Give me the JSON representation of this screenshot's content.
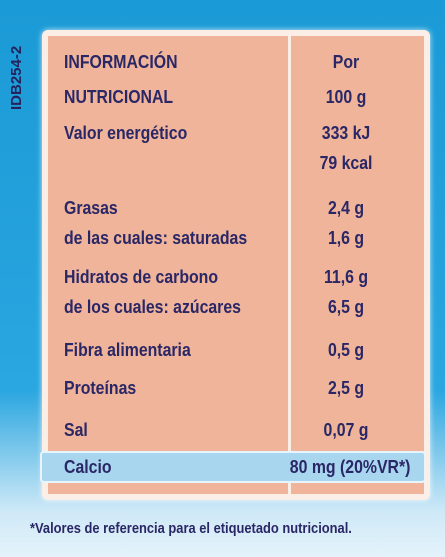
{
  "side_code": "IDB254-2",
  "header": {
    "label": [
      "INFORMACIÓN",
      "NUTRICIONAL"
    ],
    "per": [
      "Por",
      "100 g"
    ]
  },
  "rows": [
    {
      "label": [
        "Valor energético"
      ],
      "value": [
        "333 kJ",
        "79 kcal"
      ]
    },
    {
      "label": [
        "Grasas",
        "de las cuales: saturadas"
      ],
      "value": [
        "2,4 g",
        "1,6 g"
      ]
    },
    {
      "label": [
        "Hidratos de carbono",
        "de los cuales: azúcares"
      ],
      "value": [
        "11,6 g",
        "6,5 g"
      ]
    },
    {
      "label": [
        "Fibra alimentaria"
      ],
      "value": [
        "0,5 g"
      ]
    },
    {
      "label": [
        "Proteínas"
      ],
      "value": [
        "2,5 g"
      ]
    },
    {
      "label": [
        "Sal"
      ],
      "value": [
        "0,07 g"
      ]
    },
    {
      "label": [
        "Calcio"
      ],
      "value": [
        "80 mg (20%VR*)"
      ]
    }
  ],
  "footnote": "*Valores de referencia para el etiquetado nutricional."
}
